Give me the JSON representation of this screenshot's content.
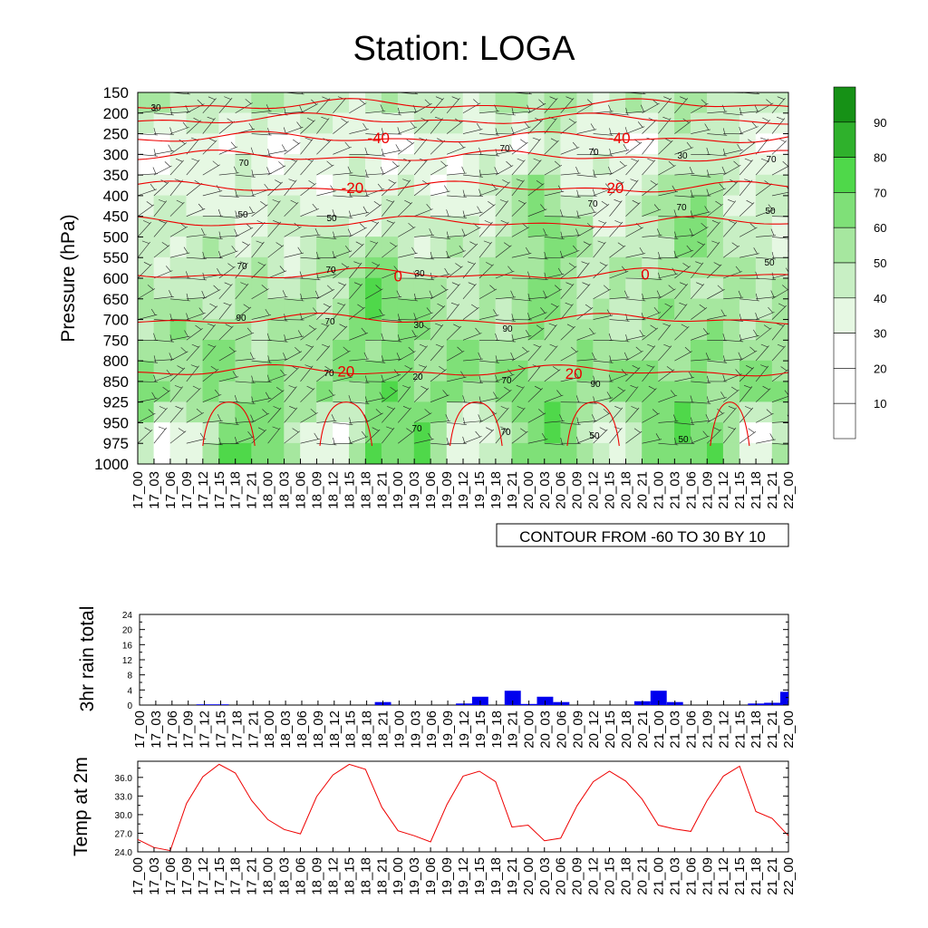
{
  "title": "Station: LOGA",
  "time_labels": [
    "17_00",
    "17_03",
    "17_06",
    "17_09",
    "17_12",
    "17_15",
    "17_18",
    "17_21",
    "18_00",
    "18_03",
    "18_06",
    "18_09",
    "18_12",
    "18_15",
    "18_18",
    "18_21",
    "19_00",
    "19_03",
    "19_06",
    "19_09",
    "19_12",
    "19_15",
    "19_18",
    "19_21",
    "20_00",
    "20_03",
    "20_06",
    "20_09",
    "20_12",
    "20_15",
    "20_18",
    "20_21",
    "21_00",
    "21_03",
    "21_06",
    "21_09",
    "21_12",
    "21_15",
    "21_18",
    "21_21",
    "22_00"
  ],
  "chart_data": [
    {
      "type": "heatmap",
      "ylabel": "Pressure (hPa)",
      "y_ticks": [
        150,
        200,
        250,
        300,
        350,
        400,
        450,
        500,
        550,
        600,
        650,
        700,
        750,
        800,
        850,
        925,
        950,
        975,
        1000
      ],
      "fill_variable": "relative humidity (%)",
      "fill_levels": [
        10,
        20,
        30,
        40,
        50,
        60,
        70,
        80,
        90
      ],
      "fill_colors": [
        "#ffffff",
        "#ffffff",
        "#ffffff",
        "#e6f8e3",
        "#c8efc4",
        "#a6e79f",
        "#7fe078",
        "#4fd84a",
        "#2fb12c",
        "#169116"
      ],
      "contour_variable": "temperature",
      "contour_note": "CONTOUR FROM -60 TO 30 BY 10",
      "contour_labels": [
        "-40",
        "-40",
        "-20",
        "-20",
        "0",
        "0",
        "20",
        "20"
      ],
      "contour_levels_approx_pressure": [
        {
          "value": -40,
          "pressure": 260
        },
        {
          "value": -20,
          "pressure": 380
        },
        {
          "value": 0,
          "pressure": 590
        },
        {
          "value": 20,
          "pressure": 825
        }
      ],
      "rh_labels": [
        "30",
        "70",
        "50",
        "30",
        "90",
        "90",
        "50",
        "70",
        "50",
        "70",
        "30",
        "70",
        "50",
        "30",
        "50",
        "70",
        "70",
        "20",
        "70",
        "70",
        "70",
        "50",
        "90",
        "70",
        "70",
        "70",
        "70"
      ]
    },
    {
      "type": "bar",
      "ylabel": "3hr rain total",
      "ylim": [
        0,
        24
      ],
      "y_ticks": [
        0,
        4,
        8,
        12,
        16,
        20,
        24
      ],
      "values": [
        0,
        0,
        0,
        0,
        0.2,
        0.2,
        0,
        0,
        0,
        0,
        0,
        0,
        0,
        0,
        0,
        0.8,
        0,
        0,
        0,
        0,
        0.4,
        2.2,
        0,
        3.8,
        0.3,
        2.2,
        0.8,
        0,
        0,
        0,
        0,
        1,
        3.8,
        0.8,
        0,
        0,
        0,
        0,
        0.4,
        0.6,
        3.5
      ],
      "color": "#0000ee"
    },
    {
      "type": "line",
      "ylabel": "Temp at 2m",
      "ylim": [
        24.0,
        38.6
      ],
      "y_ticks": [
        "24.0",
        "27.0",
        "30.0",
        "33.0",
        "36.0"
      ],
      "values": [
        26.0,
        24.7,
        24.2,
        31.8,
        36.1,
        38.1,
        36.7,
        32.3,
        29.2,
        27.6,
        26.9,
        32.9,
        36.4,
        38.1,
        37.3,
        31.2,
        27.4,
        26.6,
        25.6,
        31.6,
        36.2,
        37.0,
        35.3,
        28.0,
        28.3,
        25.8,
        26.2,
        31.4,
        35.3,
        37.0,
        35.4,
        32.5,
        28.3,
        27.7,
        27.3,
        32.3,
        36.2,
        37.8,
        30.5,
        29.4,
        26.6
      ],
      "color": "#ee0000"
    }
  ]
}
